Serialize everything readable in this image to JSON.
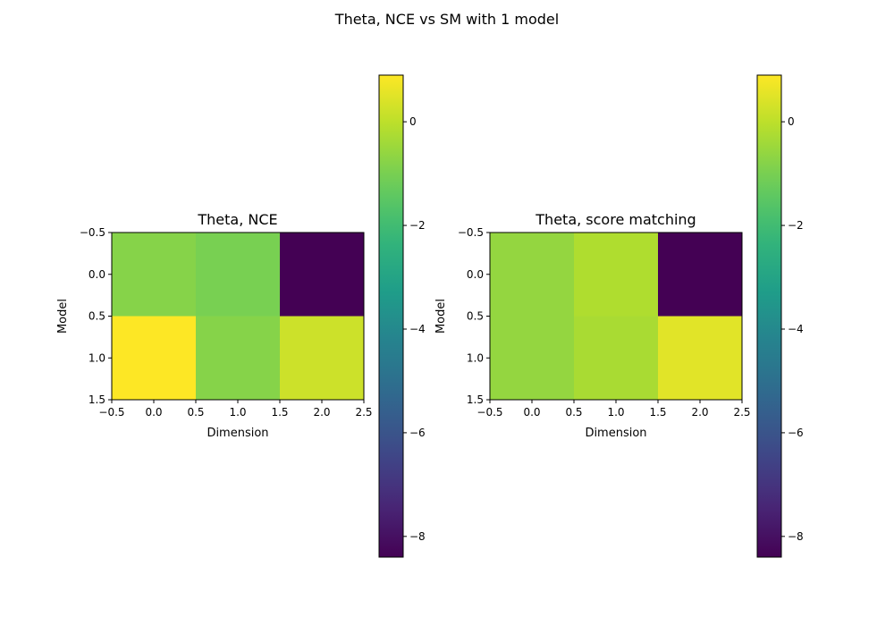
{
  "figure": {
    "suptitle": "Theta, NCE vs SM with 1 model"
  },
  "chart_data": [
    {
      "type": "heatmap",
      "title": "Theta, NCE",
      "xlabel": "Dimension",
      "ylabel": "Model",
      "xlim": [
        -0.5,
        2.5
      ],
      "ylim": [
        1.5,
        -0.5
      ],
      "xticks": [
        "−0.5",
        "0.0",
        "0.5",
        "1.0",
        "1.5",
        "2.0",
        "2.5"
      ],
      "yticks": [
        "−0.5",
        "0.0",
        "0.5",
        "1.0",
        "1.5"
      ],
      "matrix": [
        [
          -0.8,
          -1.0,
          -8.4
        ],
        [
          0.9,
          -0.8,
          0.2
        ]
      ],
      "colormap": "viridis",
      "colorbar": {
        "vmin": -8.4,
        "vmax": 0.9,
        "ticks": [
          0,
          -2,
          -4,
          -6,
          -8
        ],
        "tick_labels": [
          "0",
          "−2",
          "−4",
          "−6",
          "−8"
        ]
      }
    },
    {
      "type": "heatmap",
      "title": "Theta, score matching",
      "xlabel": "Dimension",
      "ylabel": "Model",
      "xlim": [
        -0.5,
        2.5
      ],
      "ylim": [
        1.5,
        -0.5
      ],
      "xticks": [
        "−0.5",
        "0.0",
        "0.5",
        "1.0",
        "1.5",
        "2.0",
        "2.5"
      ],
      "yticks": [
        "−0.5",
        "0.0",
        "0.5",
        "1.0",
        "1.5"
      ],
      "matrix": [
        [
          -0.6,
          -0.2,
          -8.4
        ],
        [
          -0.6,
          -0.3,
          0.5
        ]
      ],
      "colormap": "viridis",
      "colorbar": {
        "vmin": -8.4,
        "vmax": 0.9,
        "ticks": [
          0,
          -2,
          -4,
          -6,
          -8
        ],
        "tick_labels": [
          "0",
          "−2",
          "−4",
          "−6",
          "−8"
        ]
      }
    }
  ]
}
